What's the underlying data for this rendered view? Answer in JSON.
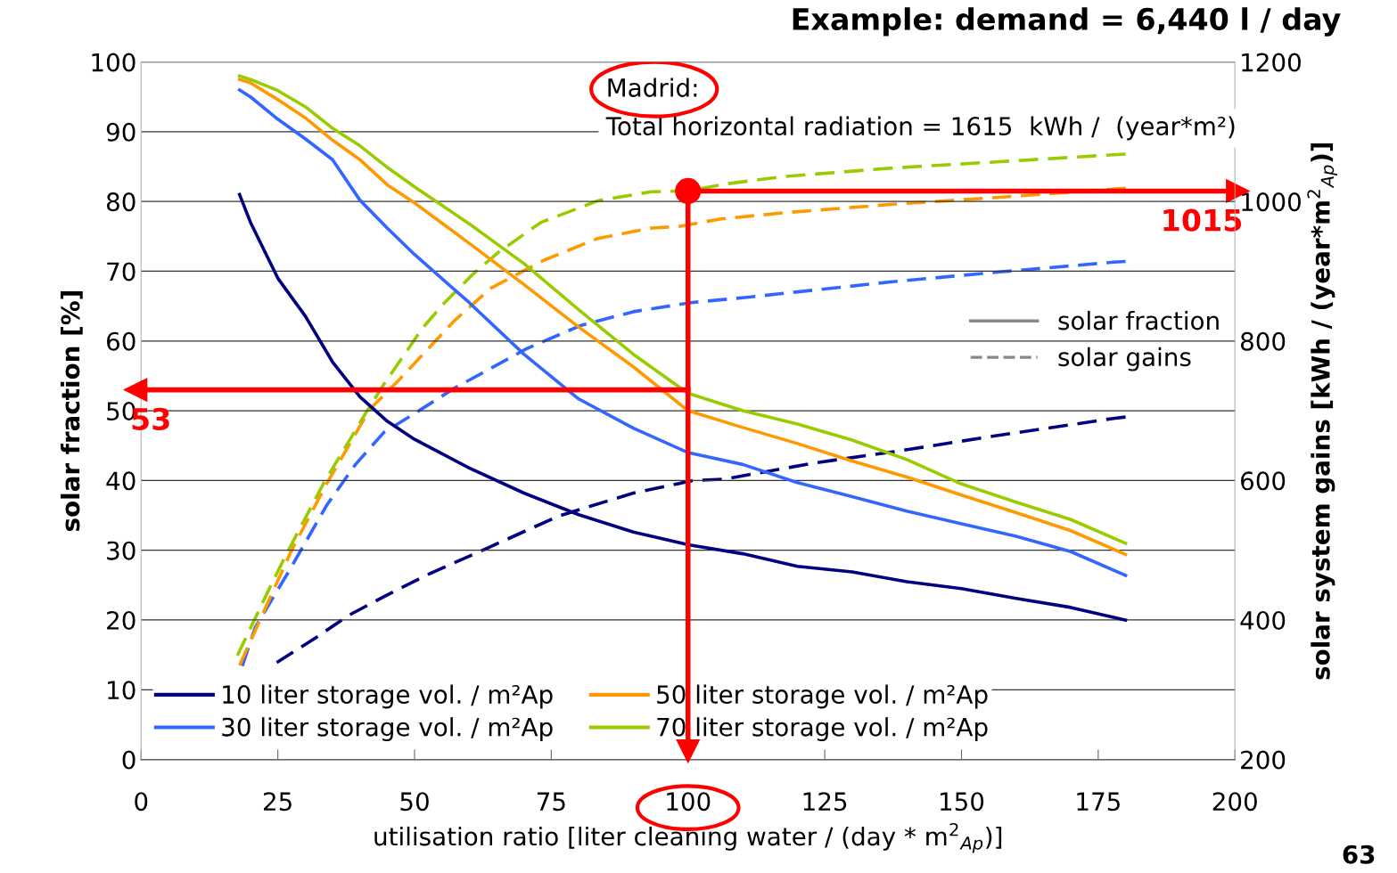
{
  "chart_data": {
    "type": "line",
    "title": "Example: demand = 6,440 l / day",
    "xlabel": "utilisation ratio [liter cleaning water / (day * m$^{2}$$_{Ap}$)]",
    "ylabel": "solar fraction [%]",
    "y2label": "solar system gains [kWh / (year*m$^{2}$$_{Ap}$)]",
    "xlim": [
      0,
      200
    ],
    "xticks": [
      0,
      25,
      50,
      75,
      100,
      125,
      150,
      175,
      200
    ],
    "ylim": [
      0,
      100
    ],
    "yticks": [
      0,
      10,
      20,
      30,
      40,
      50,
      60,
      70,
      80,
      90,
      100
    ],
    "y2lim": [
      200,
      1200
    ],
    "y2ticks": [
      200,
      400,
      600,
      800,
      1000,
      1200
    ],
    "grid": "y",
    "legend": "bottom left",
    "marker": "none",
    "series": [
      {
        "name": "10 liter storage vol. / m²Ap",
        "color": "#000080",
        "line_style": "solid",
        "x": [
          18,
          20,
          25,
          30,
          35,
          40,
          45,
          50,
          60,
          70,
          80,
          90,
          100,
          110,
          120,
          130,
          140,
          150,
          160,
          170,
          180
        ],
        "values": [
          81,
          77,
          69,
          63.6,
          57,
          52,
          48.5,
          45.9,
          41.8,
          38.2,
          35.1,
          32.6,
          30.8,
          29.5,
          27.7,
          26.9,
          25.5,
          24.5,
          23.1,
          21.8,
          20
        ]
      },
      {
        "name": "30 liter storage vol. / m²Ap",
        "color": "#3366ff",
        "line_style": "solid",
        "x": [
          18,
          20,
          25,
          30,
          35,
          40,
          45,
          50,
          60,
          70,
          80,
          90,
          100,
          110,
          120,
          130,
          140,
          150,
          160,
          170,
          180
        ],
        "values": [
          96,
          95,
          91.8,
          89,
          86,
          80.2,
          76.2,
          72.4,
          65.5,
          58.1,
          51.7,
          47.5,
          44,
          42.3,
          39.7,
          37.7,
          35.6,
          33.8,
          32,
          29.8,
          26.4
        ]
      },
      {
        "name": "50 liter storage vol. / m²Ap",
        "color": "#ff9900",
        "line_style": "solid",
        "x": [
          18,
          20,
          25,
          30,
          35,
          40,
          45,
          50,
          60,
          70,
          80,
          90,
          100,
          110,
          120,
          130,
          140,
          150,
          160,
          170,
          180
        ],
        "values": [
          97.5,
          97,
          94.6,
          92,
          88.8,
          86,
          82.4,
          79.8,
          74,
          68.1,
          62,
          56.3,
          50,
          47.6,
          45.3,
          42.8,
          40.5,
          37.9,
          35.4,
          32.8,
          29.4
        ]
      },
      {
        "name": "70 liter storage vol. / m²Ap",
        "color": "#99cc00",
        "line_style": "solid",
        "x": [
          18,
          20,
          25,
          30,
          35,
          40,
          45,
          50,
          60,
          70,
          80,
          90,
          100,
          110,
          120,
          130,
          140,
          150,
          160,
          170,
          180
        ],
        "values": [
          98,
          97.5,
          95.9,
          93.6,
          90.5,
          88,
          84.9,
          82.1,
          76.8,
          71.1,
          64.5,
          58.1,
          52.5,
          50,
          48.1,
          45.8,
          43,
          39.5,
          36.9,
          34.4,
          31
        ]
      },
      {
        "color": "#000080",
        "line_style": "dashed",
        "axis": "y2",
        "x": [
          24.8,
          32.6,
          37.8,
          45,
          52.9,
          63.3,
          76.3,
          90,
          101,
          106.7,
          123,
          137.4,
          157,
          177.8,
          180
        ],
        "values": [
          339,
          378,
          406,
          436,
          467,
          503,
          549,
          582,
          600,
          602,
          625,
          641,
          665,
          689,
          691
        ]
      },
      {
        "color": "#3366ff",
        "line_style": "dashed",
        "axis": "y2",
        "x": [
          18.5,
          20.9,
          26.8,
          33.9,
          39.2,
          44.4,
          49.6,
          57.4,
          64,
          70.5,
          80.3,
          90,
          100.5,
          110,
          124.3,
          137.4,
          157,
          177.8,
          180
        ],
        "values": [
          334,
          390,
          467,
          564,
          623,
          669,
          694,
          733,
          761,
          789,
          822,
          842,
          855,
          862,
          874,
          885,
          899,
          913,
          914
        ]
      },
      {
        "color": "#ff9900",
        "line_style": "dashed",
        "axis": "y2",
        "x": [
          18,
          27.4,
          33.9,
          41.8,
          47,
          57.4,
          64,
          73.7,
          83.5,
          93.3,
          98.2,
          106,
          117.8,
          137.4,
          157,
          176.5,
          180
        ],
        "values": [
          335,
          498,
          595,
          702,
          743,
          830,
          876,
          916,
          947,
          962,
          964,
          975,
          984,
          996,
          1006,
          1017,
          1019
        ]
      },
      {
        "color": "#99cc00",
        "line_style": "dashed",
        "axis": "y2",
        "x": [
          17.6,
          23.5,
          26.8,
          33.3,
          41.1,
          44.4,
          51.5,
          55.5,
          60.7,
          65.3,
          73.1,
          83.5,
          93.3,
          100,
          106.7,
          117.8,
          137.4,
          156.9,
          177.8,
          180
        ],
        "values": [
          349,
          446,
          498,
          595,
          697,
          738,
          819,
          855,
          896,
          927,
          970,
          1001,
          1014,
          1015,
          1025,
          1036,
          1048,
          1057,
          1067,
          1068
        ]
      }
    ],
    "ref_lines": [
      {
        "axis": "x",
        "value": 100,
        "color": "#ff0000"
      },
      {
        "axis": "y",
        "value": 53,
        "label": "53",
        "color": "#ff0000"
      },
      {
        "axis": "y2",
        "value": 1015,
        "label": "1015",
        "color": "#ff0000"
      }
    ],
    "annotations": [
      "Madrid:",
      "Total horizontal radiation = 1615  kWh /  (year*m²)",
      "solar fraction",
      "solar gains",
      "63"
    ]
  }
}
